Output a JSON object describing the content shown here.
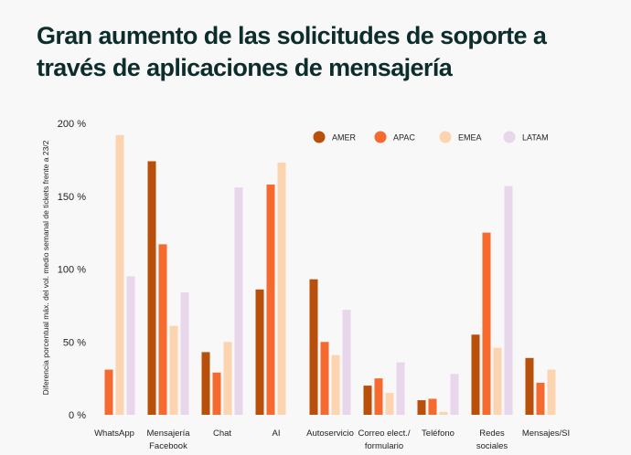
{
  "title": "Gran aumento de las solicitudes de soporte a través de aplicaciones de mensajería",
  "chart_data": {
    "type": "bar",
    "ylabel": "Diferencia porcentual máx. del vol. medio semanal de tickets frente a 23/2",
    "ylim": [
      0,
      200
    ],
    "yticks": [
      0,
      50,
      100,
      150,
      200
    ],
    "ytick_labels": [
      "0 %",
      "50 %",
      "100 %",
      "150 %",
      "200 %"
    ],
    "categories": [
      [
        "WhatsApp"
      ],
      [
        "Mensajería",
        "Facebook"
      ],
      [
        "Chat"
      ],
      [
        "AI"
      ],
      [
        "Autoservicio"
      ],
      [
        "Correo elect./",
        "formulario"
      ],
      [
        "Teléfono"
      ],
      [
        "Redes",
        "sociales"
      ],
      [
        "Mensajes/SI"
      ]
    ],
    "legend_position": "top-right",
    "series": [
      {
        "name": "AMER",
        "color": "#b84f0a",
        "values": [
          0,
          174,
          43,
          86,
          93,
          20,
          10,
          55,
          39
        ]
      },
      {
        "name": "APAC",
        "color": "#f66a30",
        "values": [
          31,
          117,
          29,
          158,
          50,
          25,
          11,
          125,
          22
        ]
      },
      {
        "name": "EMEA",
        "color": "#fcd4b0",
        "values": [
          192,
          61,
          50,
          173,
          41,
          15,
          2,
          46,
          31
        ]
      },
      {
        "name": "LATAM",
        "color": "#e8d6ea",
        "values": [
          95,
          84,
          156,
          0,
          72,
          36,
          28,
          157,
          0
        ]
      }
    ],
    "grid": false
  }
}
